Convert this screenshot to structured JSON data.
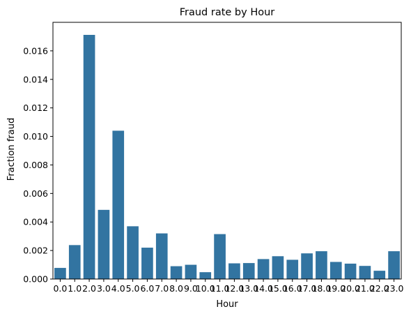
{
  "chart_data": {
    "type": "bar",
    "title": "Fraud rate by Hour",
    "xlabel": "Hour",
    "ylabel": "Fraction fraud",
    "ylim": [
      0,
      0.018
    ],
    "yticks": [
      "0.000",
      "0.002",
      "0.004",
      "0.006",
      "0.008",
      "0.010",
      "0.012",
      "0.014",
      "0.016"
    ],
    "ytick_values": [
      0,
      0.002,
      0.004,
      0.006,
      0.008,
      0.01,
      0.012,
      0.014,
      0.016
    ],
    "categories": [
      "0.0",
      "1.0",
      "2.0",
      "3.0",
      "4.0",
      "5.0",
      "6.0",
      "7.0",
      "8.0",
      "9.0",
      "10.0",
      "11.0",
      "12.0",
      "13.0",
      "14.0",
      "15.0",
      "16.0",
      "17.0",
      "18.0",
      "19.0",
      "20.0",
      "21.0",
      "22.0",
      "23.0"
    ],
    "values": [
      0.00078,
      0.00238,
      0.01712,
      0.00485,
      0.0104,
      0.0037,
      0.0022,
      0.0032,
      0.0009,
      0.001,
      0.00048,
      0.00315,
      0.0011,
      0.00112,
      0.0014,
      0.0016,
      0.00135,
      0.0018,
      0.00195,
      0.0012,
      0.00108,
      0.00092,
      0.00058,
      0.00195
    ],
    "bar_color": "#3274a1",
    "grid": false
  }
}
